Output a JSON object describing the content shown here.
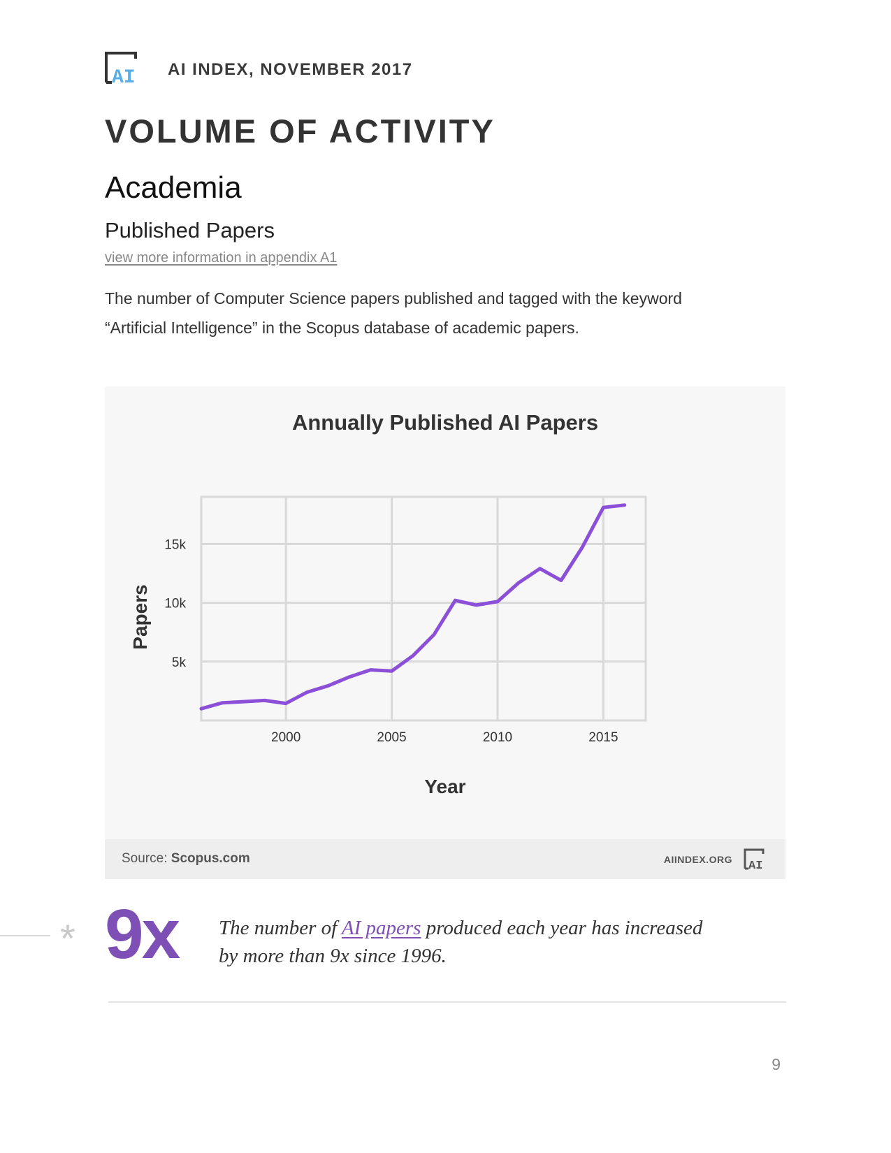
{
  "header": {
    "logo_text": "AI",
    "label": "AI INDEX, NOVEMBER 2017"
  },
  "section_title": "VOLUME OF ACTIVITY",
  "sub_title": "Academia",
  "sub_sub_title": "Published Papers",
  "appendix_link": "view more information in appendix A1",
  "description_lines": [
    "The number of Computer Science papers published and tagged with the keyword",
    "“Artificial Intelligence” in the Scopus database of academic papers."
  ],
  "chart_data": {
    "type": "line",
    "title": "Annually Published AI Papers",
    "xlabel": "Year",
    "ylabel": "Papers",
    "xlim": [
      1996,
      2017
    ],
    "ylim": [
      0,
      19000
    ],
    "x_ticks": [
      2000,
      2005,
      2010,
      2015
    ],
    "x_tick_labels": [
      "2000",
      "2005",
      "2010",
      "2015"
    ],
    "y_ticks": [
      5000,
      10000,
      15000
    ],
    "y_tick_labels": [
      "5k",
      "10k",
      "15k"
    ],
    "grid": true,
    "line_color": "#8b4fd8",
    "series": [
      {
        "x": [
          1996,
          1997,
          1998,
          1999,
          2000,
          2001,
          2002,
          2003,
          2004,
          2005,
          2006,
          2007,
          2008,
          2009,
          2010,
          2011,
          2012,
          2013,
          2014,
          2015,
          2016
        ],
        "values": [
          1000,
          1500,
          1600,
          1700,
          1450,
          2400,
          2950,
          3700,
          4300,
          4200,
          5500,
          7300,
          10200,
          9800,
          10100,
          11700,
          12900,
          11900,
          14700,
          18100,
          18300
        ]
      }
    ]
  },
  "source": {
    "label": "Source:",
    "value": "Scopus.com"
  },
  "footer_brand": "AIINDEX.ORG",
  "callout": {
    "asterisk": "*",
    "stat": "9x",
    "text_before": "The number of ",
    "link_text": "AI papers",
    "text_after": " produced each year has increased by more than 9x since 1996."
  },
  "page_number": "9"
}
